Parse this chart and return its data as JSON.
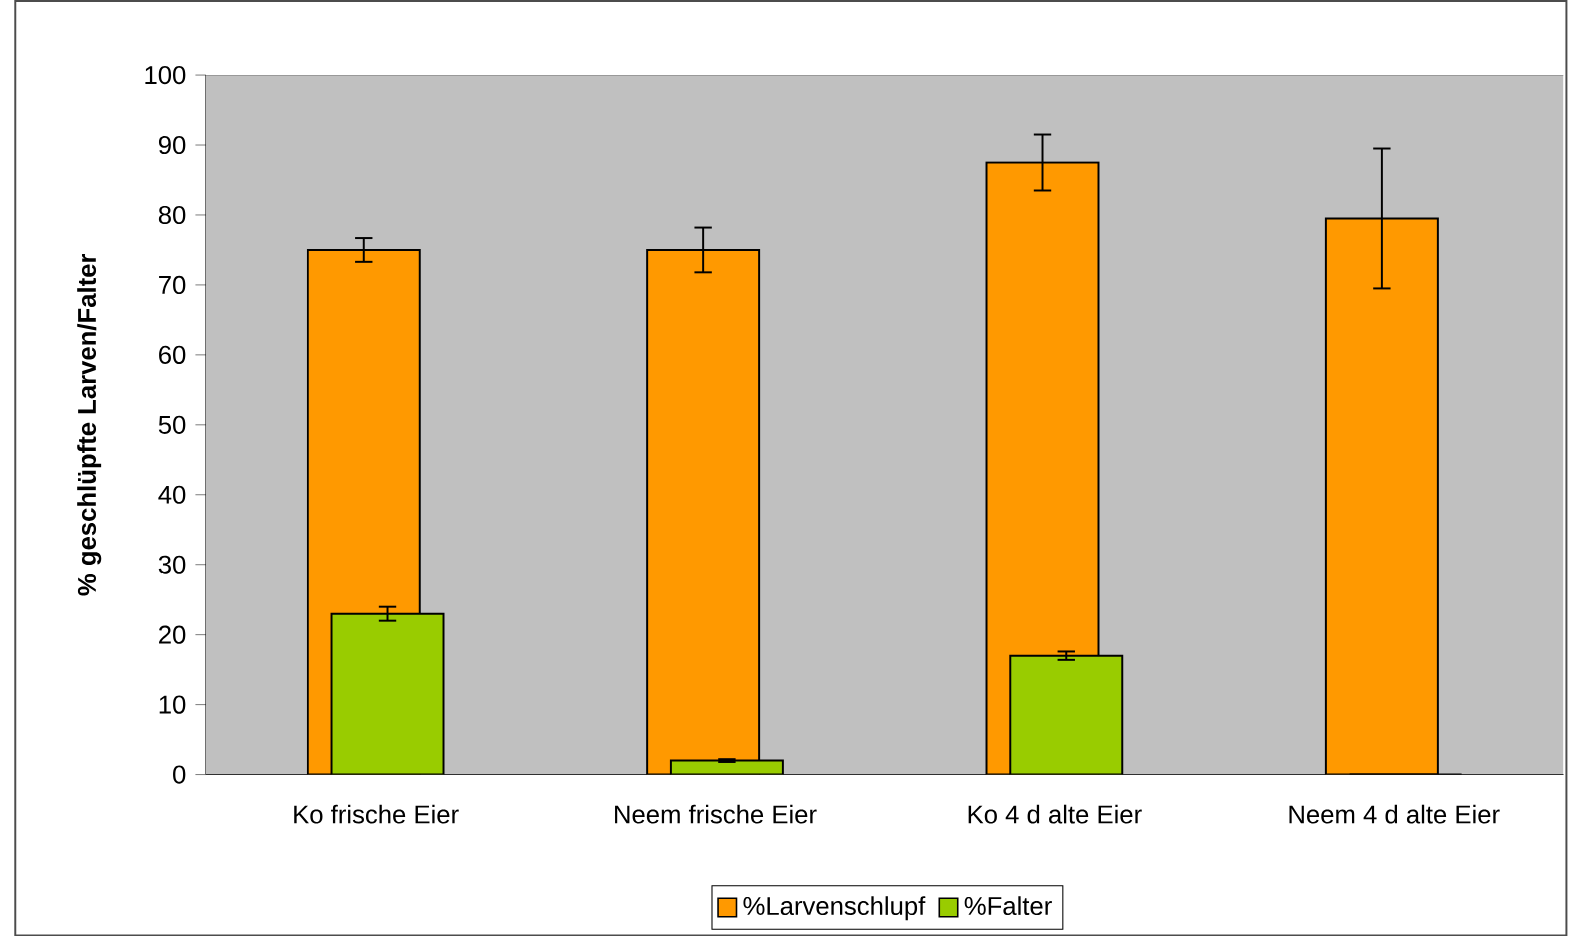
{
  "chart_data": {
    "type": "bar",
    "ylabel": "% geschlüpfte Larven/Falter",
    "categories": [
      "Ko frische Eier",
      "Neem frische Eier",
      "Ko 4 d alte Eier",
      "Neem 4 d alte Eier"
    ],
    "series": [
      {
        "name": "%Larvenschlupf",
        "color": "#ff9900",
        "values": [
          75,
          75,
          87.5,
          79.5
        ],
        "errors": [
          1.7,
          3.2,
          4,
          10
        ]
      },
      {
        "name": "%Falter",
        "color": "#99cc00",
        "values": [
          23,
          2,
          17,
          0
        ],
        "errors": [
          1,
          0.2,
          0.6,
          null
        ]
      }
    ],
    "ylim": [
      0,
      100
    ],
    "yticks": [
      0,
      10,
      20,
      30,
      40,
      50,
      60,
      70,
      80,
      90,
      100
    ],
    "legend": "bottom"
  }
}
